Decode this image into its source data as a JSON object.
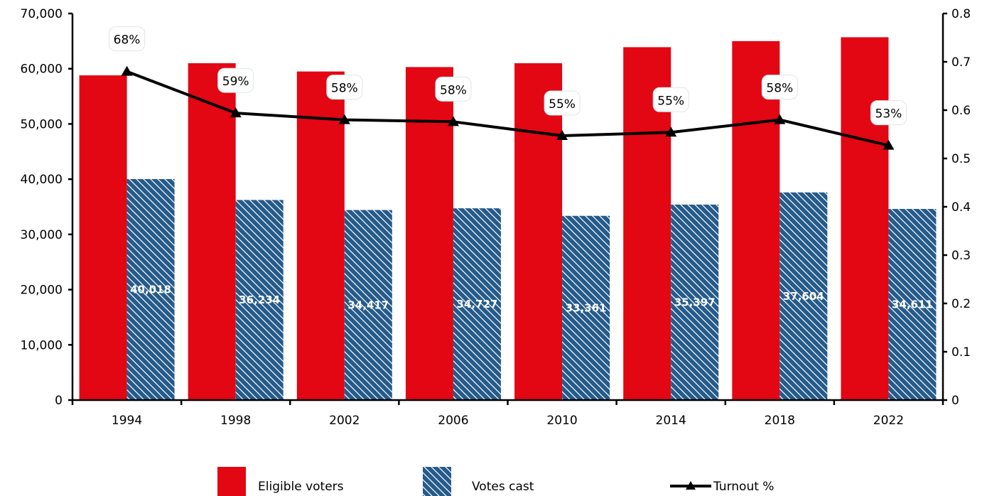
{
  "chart_data": {
    "type": "bar",
    "categories": [
      "1994",
      "1998",
      "2002",
      "2006",
      "2010",
      "2014",
      "2018",
      "2022"
    ],
    "series": [
      {
        "name": "Eligible voters",
        "kind": "bar",
        "axis": "left",
        "color": "#e30613",
        "values": [
          58800,
          61000,
          59500,
          60300,
          61000,
          63900,
          65000,
          65700
        ]
      },
      {
        "name": "Votes cast",
        "kind": "bar",
        "axis": "left",
        "color": "#255b8a",
        "pattern": "diagonal-hatch",
        "values": [
          40018,
          36234,
          34417,
          34727,
          33361,
          35397,
          37604,
          34611
        ],
        "labels": [
          "40,018",
          "36,234",
          "34,417",
          "34,727",
          "33,361",
          "35,397",
          "37,604",
          "34,611"
        ]
      },
      {
        "name": "Turnout %",
        "kind": "line",
        "axis": "right",
        "color": "#000000",
        "marker": "triangle",
        "values": [
          0.68,
          0.594,
          0.58,
          0.576,
          0.547,
          0.554,
          0.58,
          0.527
        ],
        "labels": [
          "68%",
          "59%",
          "58%",
          "58%",
          "55%",
          "55%",
          "58%",
          "53%"
        ]
      }
    ],
    "y_left": {
      "ylim": [
        0,
        70000
      ],
      "ticks": [
        0,
        10000,
        20000,
        30000,
        40000,
        50000,
        60000,
        70000
      ],
      "tick_labels": [
        "0",
        "10,000",
        "20,000",
        "30,000",
        "40,000",
        "50,000",
        "60,000",
        "70,000"
      ]
    },
    "y_right": {
      "ylim": [
        0,
        0.8
      ],
      "ticks": [
        0,
        0.1,
        0.2,
        0.3,
        0.4,
        0.5,
        0.6,
        0.7,
        0.8
      ],
      "tick_labels": [
        "0",
        "0.1",
        "0.2",
        "0.3",
        "0.4",
        "0.5",
        "0.6",
        "0.7",
        "0.8"
      ]
    },
    "title": "",
    "xlabel": "",
    "grid": false,
    "legend": {
      "position": "bottom",
      "entries": [
        "Eligible voters",
        "Votes cast",
        "Turnout %"
      ]
    }
  }
}
